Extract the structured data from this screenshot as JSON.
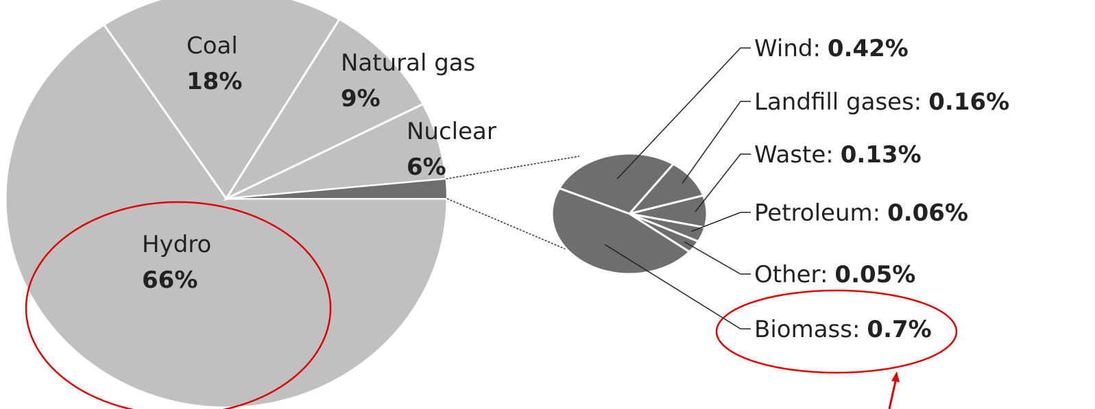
{
  "chart_data": {
    "type": "pie_of_pie",
    "categories": [
      "Hydro",
      "Coal",
      "Natural gas",
      "Nuclear"
    ],
    "values": [
      66,
      18,
      9,
      6
    ],
    "value_labels": [
      "66%",
      "18%",
      "9%",
      "6%"
    ],
    "color": "#c0c0c0",
    "secondary": {
      "categories": [
        "Wind:",
        "Landfill gases:",
        "Waste:",
        "Petroleum:",
        "Other:",
        "Biomass:"
      ],
      "values": [
        0.42,
        0.16,
        0.13,
        0.06,
        0.05,
        0.7
      ],
      "value_labels": [
        "0.42%",
        "0.16%",
        "0.13%",
        "0.06%",
        "0.05%",
        "0.7%"
      ],
      "color": "#6e6e6e"
    }
  }
}
